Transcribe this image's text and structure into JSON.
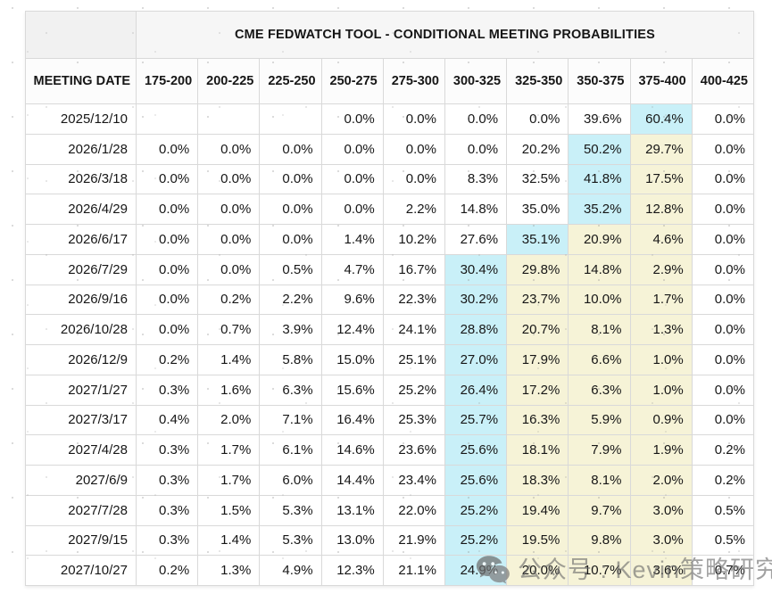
{
  "chart_data": {
    "type": "table",
    "title": "CME FEDWATCH TOOL - CONDITIONAL MEETING PROBABILITIES",
    "columns": [
      "MEETING DATE",
      "175-200",
      "200-225",
      "225-250",
      "250-275",
      "275-300",
      "300-325",
      "325-350",
      "350-375",
      "375-400",
      "400-425"
    ],
    "rows": [
      {
        "date": "2025/12/10",
        "values": [
          "",
          "",
          "",
          "0.0%",
          "0.0%",
          "0.0%",
          "0.0%",
          "39.6%",
          "60.4%",
          "0.0%"
        ],
        "cyan": 8,
        "yellow": []
      },
      {
        "date": "2026/1/28",
        "values": [
          "0.0%",
          "0.0%",
          "0.0%",
          "0.0%",
          "0.0%",
          "0.0%",
          "20.2%",
          "50.2%",
          "29.7%",
          "0.0%"
        ],
        "cyan": 7,
        "yellow": [
          8
        ]
      },
      {
        "date": "2026/3/18",
        "values": [
          "0.0%",
          "0.0%",
          "0.0%",
          "0.0%",
          "0.0%",
          "8.3%",
          "32.5%",
          "41.8%",
          "17.5%",
          "0.0%"
        ],
        "cyan": 7,
        "yellow": [
          8
        ]
      },
      {
        "date": "2026/4/29",
        "values": [
          "0.0%",
          "0.0%",
          "0.0%",
          "0.0%",
          "2.2%",
          "14.8%",
          "35.0%",
          "35.2%",
          "12.8%",
          "0.0%"
        ],
        "cyan": 7,
        "yellow": [
          8
        ]
      },
      {
        "date": "2026/6/17",
        "values": [
          "0.0%",
          "0.0%",
          "0.0%",
          "1.4%",
          "10.2%",
          "27.6%",
          "35.1%",
          "20.9%",
          "4.6%",
          "0.0%"
        ],
        "cyan": 6,
        "yellow": [
          7,
          8
        ]
      },
      {
        "date": "2026/7/29",
        "values": [
          "0.0%",
          "0.0%",
          "0.5%",
          "4.7%",
          "16.7%",
          "30.4%",
          "29.8%",
          "14.8%",
          "2.9%",
          "0.0%"
        ],
        "cyan": 5,
        "yellow": [
          6,
          7,
          8
        ]
      },
      {
        "date": "2026/9/16",
        "values": [
          "0.0%",
          "0.2%",
          "2.2%",
          "9.6%",
          "22.3%",
          "30.2%",
          "23.7%",
          "10.0%",
          "1.7%",
          "0.0%"
        ],
        "cyan": 5,
        "yellow": [
          6,
          7,
          8
        ]
      },
      {
        "date": "2026/10/28",
        "values": [
          "0.0%",
          "0.7%",
          "3.9%",
          "12.4%",
          "24.1%",
          "28.8%",
          "20.7%",
          "8.1%",
          "1.3%",
          "0.0%"
        ],
        "cyan": 5,
        "yellow": [
          6,
          7,
          8
        ]
      },
      {
        "date": "2026/12/9",
        "values": [
          "0.2%",
          "1.4%",
          "5.8%",
          "15.0%",
          "25.1%",
          "27.0%",
          "17.9%",
          "6.6%",
          "1.0%",
          "0.0%"
        ],
        "cyan": 5,
        "yellow": [
          6,
          7,
          8
        ]
      },
      {
        "date": "2027/1/27",
        "values": [
          "0.3%",
          "1.6%",
          "6.3%",
          "15.6%",
          "25.2%",
          "26.4%",
          "17.2%",
          "6.3%",
          "1.0%",
          "0.0%"
        ],
        "cyan": 5,
        "yellow": [
          6,
          7,
          8
        ]
      },
      {
        "date": "2027/3/17",
        "values": [
          "0.4%",
          "2.0%",
          "7.1%",
          "16.4%",
          "25.3%",
          "25.7%",
          "16.3%",
          "5.9%",
          "0.9%",
          "0.0%"
        ],
        "cyan": 5,
        "yellow": [
          6,
          7,
          8
        ]
      },
      {
        "date": "2027/4/28",
        "values": [
          "0.3%",
          "1.7%",
          "6.1%",
          "14.6%",
          "23.6%",
          "25.6%",
          "18.1%",
          "7.9%",
          "1.9%",
          "0.2%"
        ],
        "cyan": 5,
        "yellow": [
          6,
          7,
          8
        ]
      },
      {
        "date": "2027/6/9",
        "values": [
          "0.3%",
          "1.7%",
          "6.0%",
          "14.4%",
          "23.4%",
          "25.6%",
          "18.3%",
          "8.1%",
          "2.0%",
          "0.2%"
        ],
        "cyan": 5,
        "yellow": [
          6,
          7,
          8
        ]
      },
      {
        "date": "2027/7/28",
        "values": [
          "0.3%",
          "1.5%",
          "5.3%",
          "13.1%",
          "22.0%",
          "25.2%",
          "19.4%",
          "9.7%",
          "3.0%",
          "0.5%"
        ],
        "cyan": 5,
        "yellow": [
          6,
          7,
          8
        ]
      },
      {
        "date": "2027/9/15",
        "values": [
          "0.3%",
          "1.4%",
          "5.3%",
          "13.0%",
          "21.9%",
          "25.2%",
          "19.5%",
          "9.8%",
          "3.0%",
          "0.5%"
        ],
        "cyan": 5,
        "yellow": [
          6,
          7,
          8
        ]
      },
      {
        "date": "2027/10/27",
        "values": [
          "0.2%",
          "1.3%",
          "4.9%",
          "12.3%",
          "21.1%",
          "24.9%",
          "20.0%",
          "10.7%",
          "3.6%",
          "0.7%"
        ],
        "cyan": 5,
        "yellow": [
          6,
          7,
          8
        ]
      }
    ],
    "layout": {
      "grid": true,
      "highlight_legend": "cyan = highest-probability rate bucket per meeting, yellow = adjacent higher buckets"
    }
  },
  "colors": {
    "highlight_cyan": "#c9f0f8",
    "highlight_yellow": "#f6f3d7",
    "border": "#d9d9d9"
  },
  "watermark": {
    "icon": "wechat-icon",
    "text": "公众号 : Kevin策略研究"
  }
}
